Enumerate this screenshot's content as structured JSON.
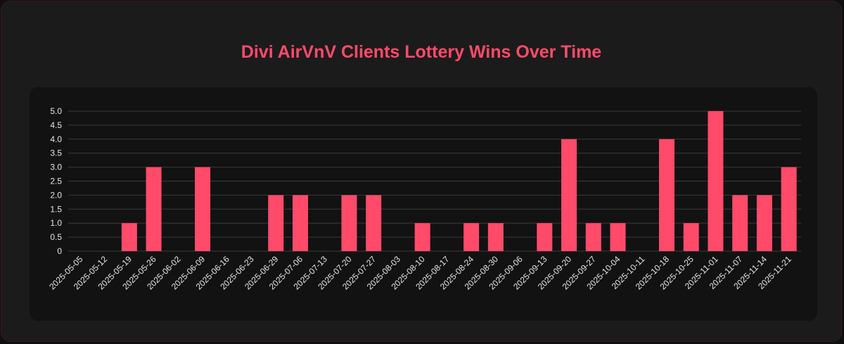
{
  "title": "Divi AirVnV Clients Lottery Wins Over Time",
  "colors": {
    "bar": "#ff4a6a",
    "title": "#ff4a6a",
    "grid": "#3a3a3a",
    "tick_text": "#e6e6e6"
  },
  "chart_data": {
    "type": "bar",
    "title": "Divi AirVnV Clients Lottery Wins Over Time",
    "xlabel": "",
    "ylabel": "",
    "ylim": [
      0,
      5
    ],
    "y_ticks": [
      "0",
      "0.5",
      "1.0",
      "1.5",
      "2.0",
      "2.5",
      "3.0",
      "3.5",
      "4.0",
      "4.5",
      "5.0"
    ],
    "grid": true,
    "legend": "none",
    "categories": [
      "2025-05-05",
      "2025-05-12",
      "2025-05-19",
      "2025-05-26",
      "2025-06-02",
      "2025-06-09",
      "2025-06-16",
      "2025-06-23",
      "2025-06-29",
      "2025-07-06",
      "2025-07-13",
      "2025-07-20",
      "2025-07-27",
      "2025-08-03",
      "2025-08-10",
      "2025-08-17",
      "2025-08-24",
      "2025-08-30",
      "2025-09-06",
      "2025-09-13",
      "2025-09-20",
      "2025-09-27",
      "2025-10-04",
      "2025-10-11",
      "2025-10-18",
      "2025-10-25",
      "2025-11-01",
      "2025-11-07",
      "2025-11-14",
      "2025-11-21"
    ],
    "values": [
      0,
      0,
      1,
      3,
      0,
      3,
      0,
      0,
      2,
      2,
      0,
      2,
      2,
      0,
      1,
      0,
      1,
      1,
      0,
      1,
      4,
      1,
      1,
      0,
      4,
      1,
      5,
      2,
      2,
      3
    ]
  }
}
